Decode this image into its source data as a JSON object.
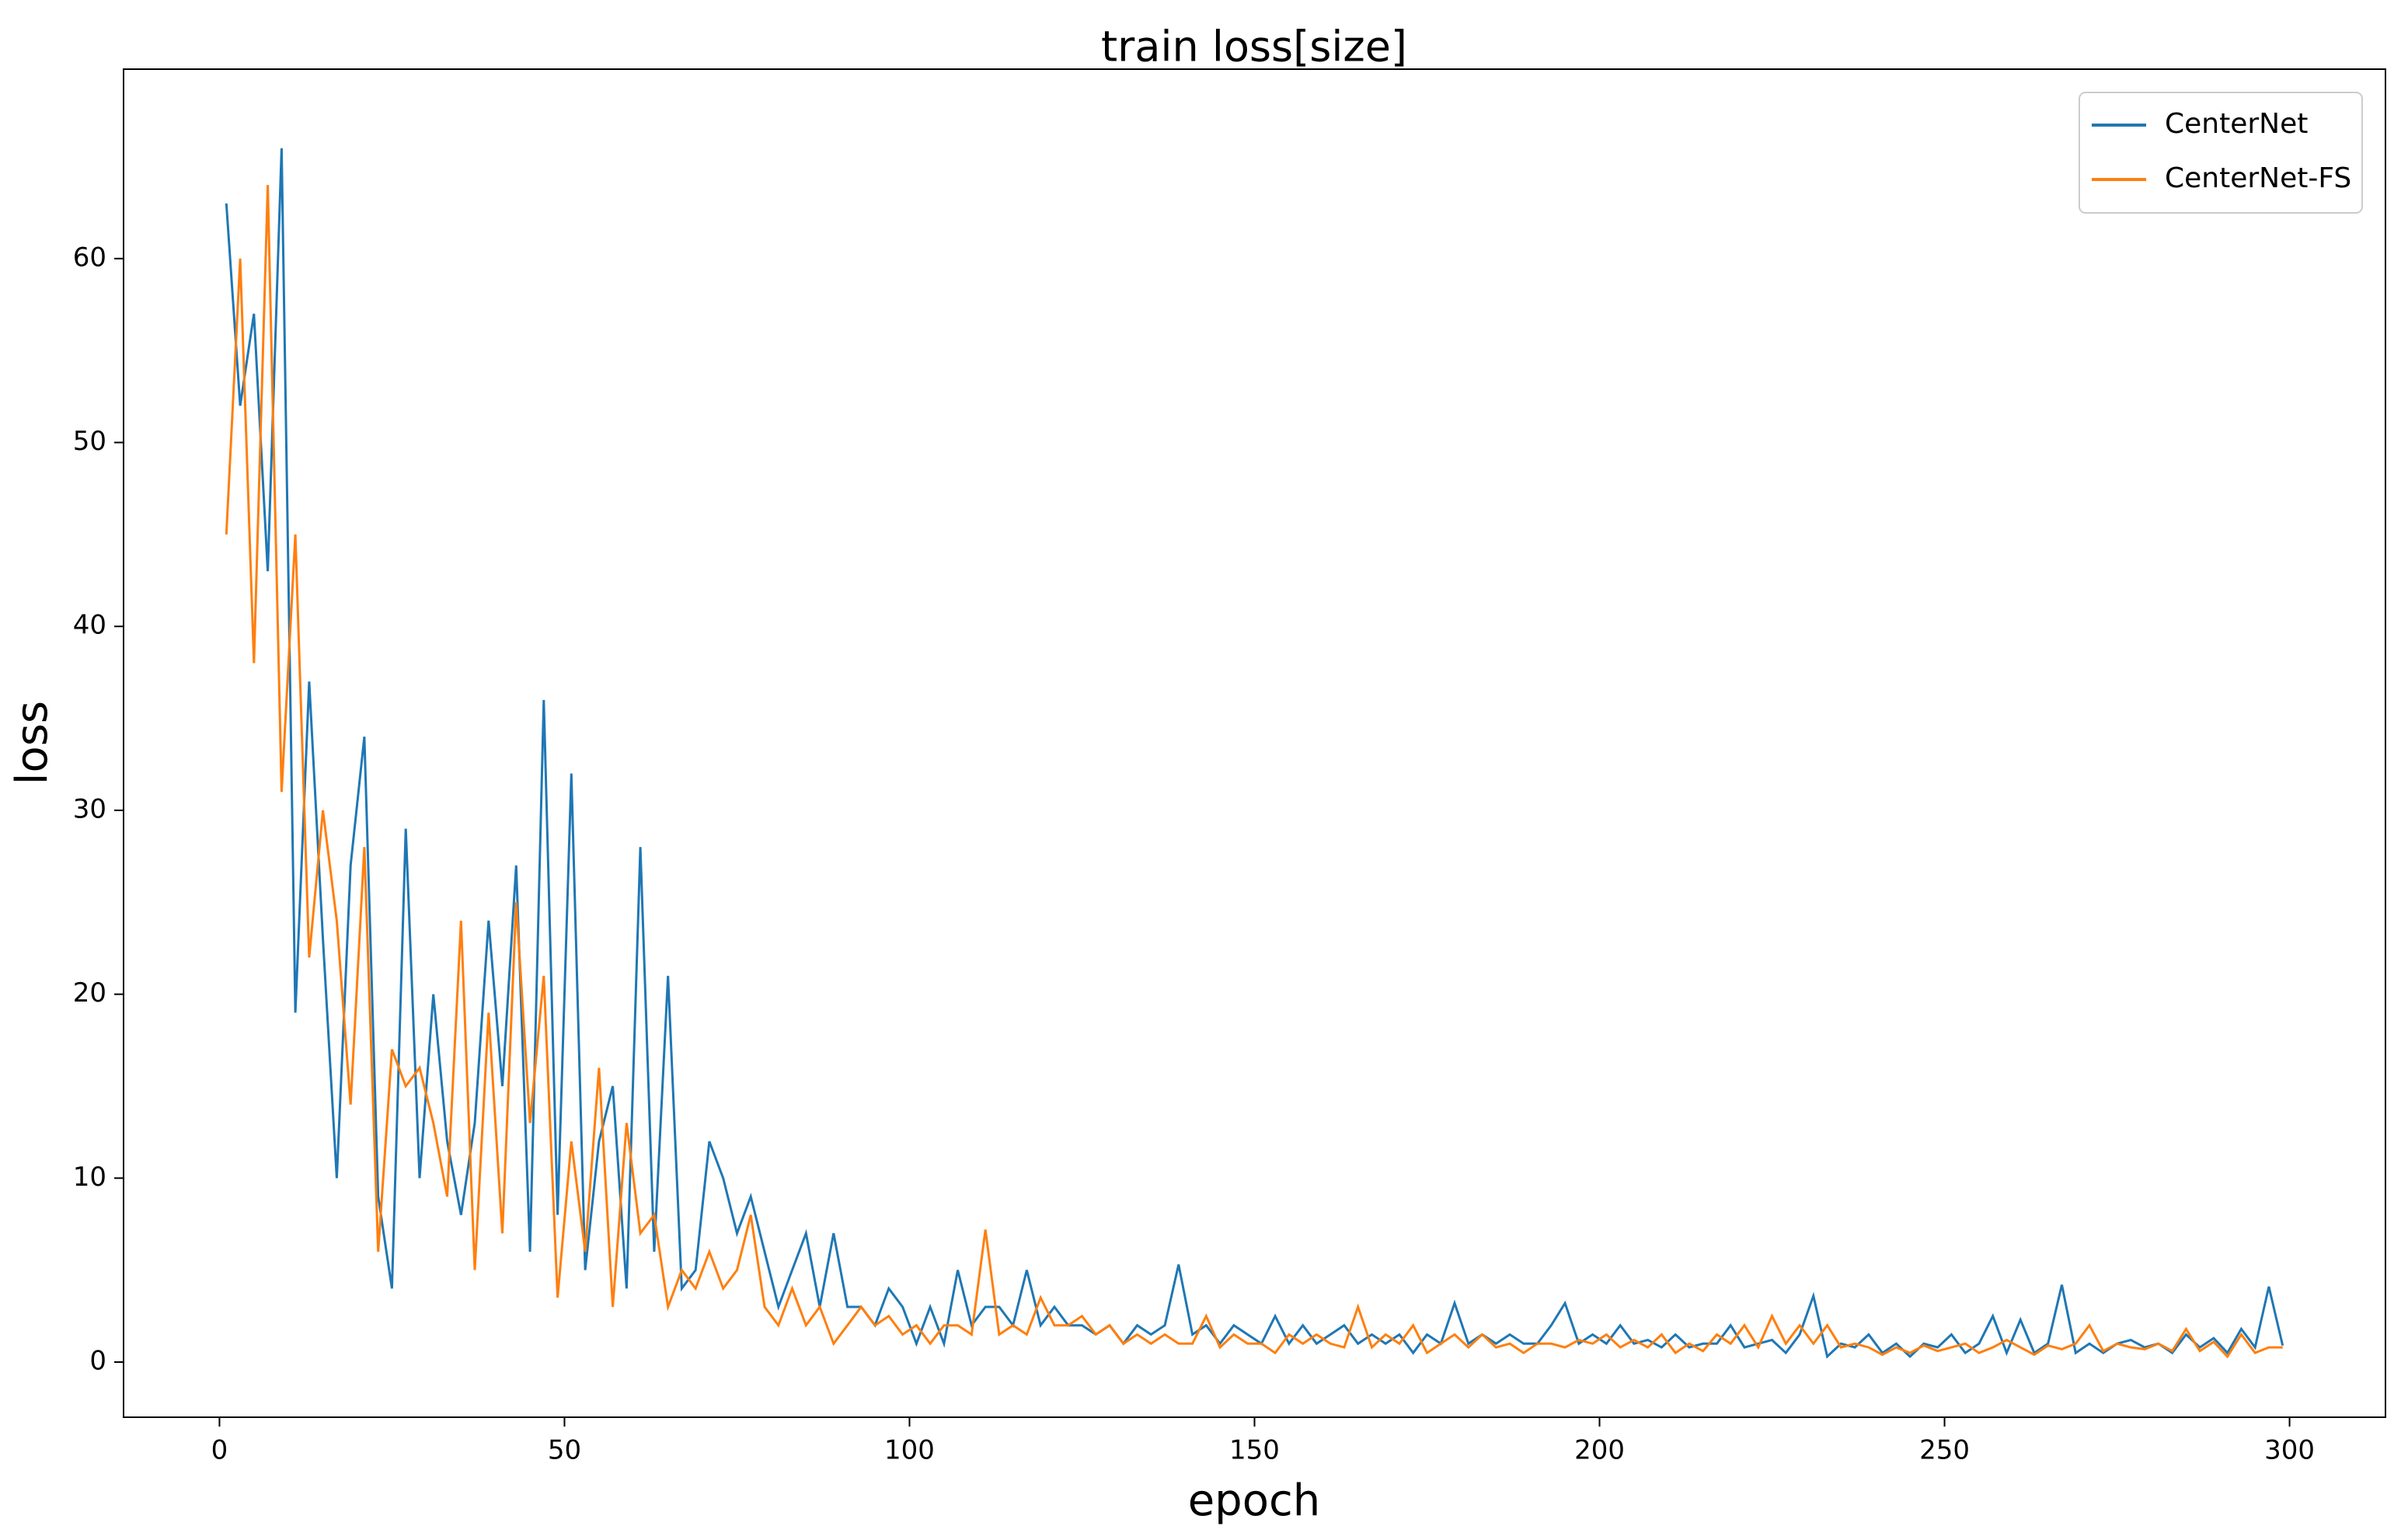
{
  "chart_data": {
    "type": "line",
    "title": "train loss[size]",
    "x_label": "epoch",
    "y_label": "loss",
    "x": [
      1,
      3,
      5,
      7,
      9,
      11,
      13,
      15,
      17,
      19,
      21,
      23,
      25,
      27,
      29,
      31,
      33,
      35,
      37,
      39,
      41,
      43,
      45,
      47,
      49,
      51,
      53,
      55,
      57,
      59,
      61,
      63,
      65,
      67,
      69,
      71,
      73,
      75,
      77,
      79,
      81,
      83,
      85,
      87,
      89,
      91,
      93,
      95,
      97,
      99,
      101,
      103,
      105,
      107,
      109,
      111,
      113,
      115,
      117,
      119,
      121,
      123,
      125,
      127,
      129,
      131,
      133,
      135,
      137,
      139,
      141,
      143,
      145,
      147,
      149,
      151,
      153,
      155,
      157,
      159,
      161,
      163,
      165,
      167,
      169,
      171,
      173,
      175,
      177,
      179,
      181,
      183,
      185,
      187,
      189,
      191,
      193,
      195,
      197,
      199,
      201,
      203,
      205,
      207,
      209,
      211,
      213,
      215,
      217,
      219,
      221,
      223,
      225,
      227,
      229,
      231,
      233,
      235,
      237,
      239,
      241,
      243,
      245,
      247,
      249,
      251,
      253,
      255,
      257,
      259,
      261,
      263,
      265,
      267,
      269,
      271,
      273,
      275,
      277,
      279,
      281,
      283,
      285,
      287,
      289,
      291,
      293,
      295,
      297,
      299
    ],
    "series": [
      {
        "name": "CenterNet",
        "color": "#1f77b4",
        "values": [
          63,
          52,
          57,
          43,
          66,
          19,
          37,
          23,
          10,
          27,
          34,
          9,
          4,
          29,
          10,
          20,
          12,
          8,
          13,
          24,
          15,
          27,
          6,
          36,
          8,
          32,
          5,
          12,
          15,
          4,
          28,
          6,
          21,
          4,
          5,
          12,
          10,
          7,
          9,
          6,
          3,
          5,
          7,
          3,
          7,
          3,
          3,
          2,
          4,
          3,
          1,
          3,
          1,
          5,
          2,
          3,
          3,
          2,
          5,
          2,
          3,
          2,
          2,
          1.5,
          2,
          1,
          2,
          1.5,
          2,
          5.3,
          1.5,
          2,
          1,
          2,
          1.5,
          1,
          2.5,
          1,
          2,
          1,
          1.5,
          2,
          1,
          1.5,
          1,
          1.5,
          0.5,
          1.5,
          1,
          3.2,
          1,
          1.5,
          1,
          1.5,
          1,
          1,
          2,
          3.2,
          1,
          1.5,
          1,
          2,
          1,
          1.2,
          0.8,
          1.5,
          0.8,
          1,
          1,
          2,
          0.8,
          1,
          1.2,
          0.5,
          1.5,
          3.6,
          0.3,
          1,
          0.8,
          1.5,
          0.5,
          1,
          0.3,
          1,
          0.8,
          1.5,
          0.5,
          1,
          2.5,
          0.5,
          2.3,
          0.5,
          1,
          4.2,
          0.5,
          1,
          0.5,
          1,
          1.2,
          0.8,
          1,
          0.5,
          1.5,
          0.8,
          1.3,
          0.5,
          1.8,
          0.8,
          4.1,
          0.9
        ]
      },
      {
        "name": "CenterNet-FS",
        "color": "#ff7f0e",
        "values": [
          45,
          60,
          38,
          64,
          31,
          45,
          22,
          30,
          24,
          14,
          28,
          6,
          17,
          15,
          16,
          13,
          9,
          24,
          5,
          19,
          7,
          25,
          13,
          21,
          3.5,
          12,
          6,
          16,
          3,
          13,
          7,
          8,
          3,
          5,
          4,
          6,
          4,
          5,
          8,
          3,
          2,
          4,
          2,
          3,
          1,
          2,
          3,
          2,
          2.5,
          1.5,
          2,
          1,
          2,
          2,
          1.5,
          7.2,
          1.5,
          2,
          1.5,
          3.5,
          2,
          2,
          2.5,
          1.5,
          2,
          1,
          1.5,
          1,
          1.5,
          1,
          1,
          2.5,
          0.8,
          1.5,
          1,
          1,
          0.5,
          1.5,
          1,
          1.5,
          1,
          0.8,
          3,
          0.8,
          1.5,
          1,
          2,
          0.5,
          1,
          1.5,
          0.8,
          1.5,
          0.8,
          1,
          0.5,
          1,
          1,
          0.8,
          1.2,
          1,
          1.5,
          0.8,
          1.2,
          0.8,
          1.5,
          0.5,
          1,
          0.6,
          1.5,
          1,
          2,
          0.8,
          2.5,
          1,
          2,
          1,
          2,
          0.8,
          1,
          0.8,
          0.4,
          0.8,
          0.5,
          0.9,
          0.6,
          0.8,
          1,
          0.5,
          0.8,
          1.2,
          0.8,
          0.4,
          0.9,
          0.7,
          1,
          2,
          0.6,
          1,
          0.8,
          0.7,
          1,
          0.6,
          1.8,
          0.6,
          1.1,
          0.3,
          1.5,
          0.5,
          0.8,
          0.8
        ]
      }
    ],
    "xlim": [
      -13.9,
      313.9
    ],
    "ylim": [
      -3.0,
      70.3
    ],
    "xticks": [
      0,
      50,
      100,
      150,
      200,
      250,
      300
    ],
    "yticks": [
      0,
      10,
      20,
      30,
      40,
      50,
      60
    ],
    "legend": "upper right"
  }
}
